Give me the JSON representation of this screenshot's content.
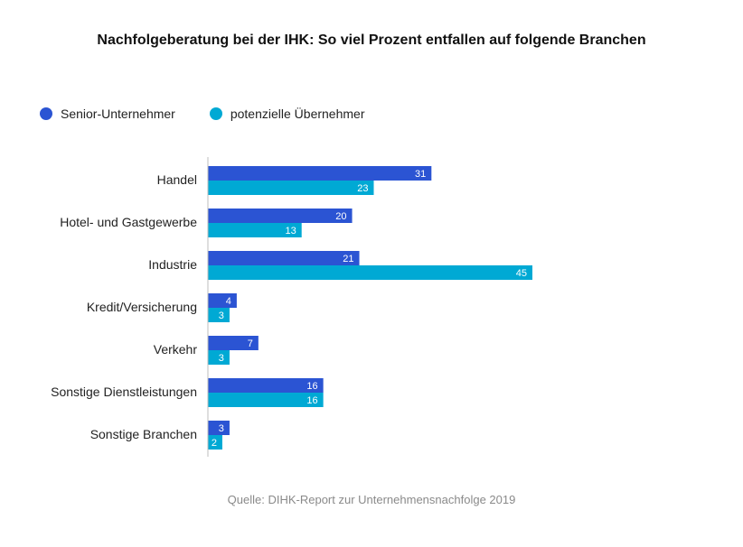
{
  "title": "Nachfolgeberatung bei der IHK: So viel Prozent entfallen auf folgende Branchen",
  "source": "Quelle: DIHK-Report zur Unternehmensnachfolge 2019",
  "colors": {
    "senior": "#2b54d3",
    "potential": "#00a9d4",
    "axis": "#bdbdbd"
  },
  "legend": {
    "items": [
      {
        "label": "Senior-Unternehmer",
        "color": "#2b54d3"
      },
      {
        "label": "potenzielle Übernehmer",
        "color": "#00a9d4"
      }
    ]
  },
  "chart_data": {
    "type": "bar",
    "orientation": "horizontal",
    "categories": [
      "Handel",
      "Hotel- und Gastgewerbe",
      "Industrie",
      "Kredit/Versicherung",
      "Verkehr",
      "Sonstige Dienstleistungen",
      "Sonstige Branchen"
    ],
    "series": [
      {
        "name": "Senior-Unternehmer",
        "color": "#2b54d3",
        "values": [
          31,
          20,
          21,
          4,
          7,
          16,
          3
        ]
      },
      {
        "name": "potenzielle Übernehmer",
        "color": "#00a9d4",
        "values": [
          23,
          13,
          45,
          3,
          3,
          16,
          2
        ]
      }
    ],
    "xlim": [
      0,
      45
    ],
    "grid": false,
    "legend_position": "top-left",
    "data_labels": true
  }
}
